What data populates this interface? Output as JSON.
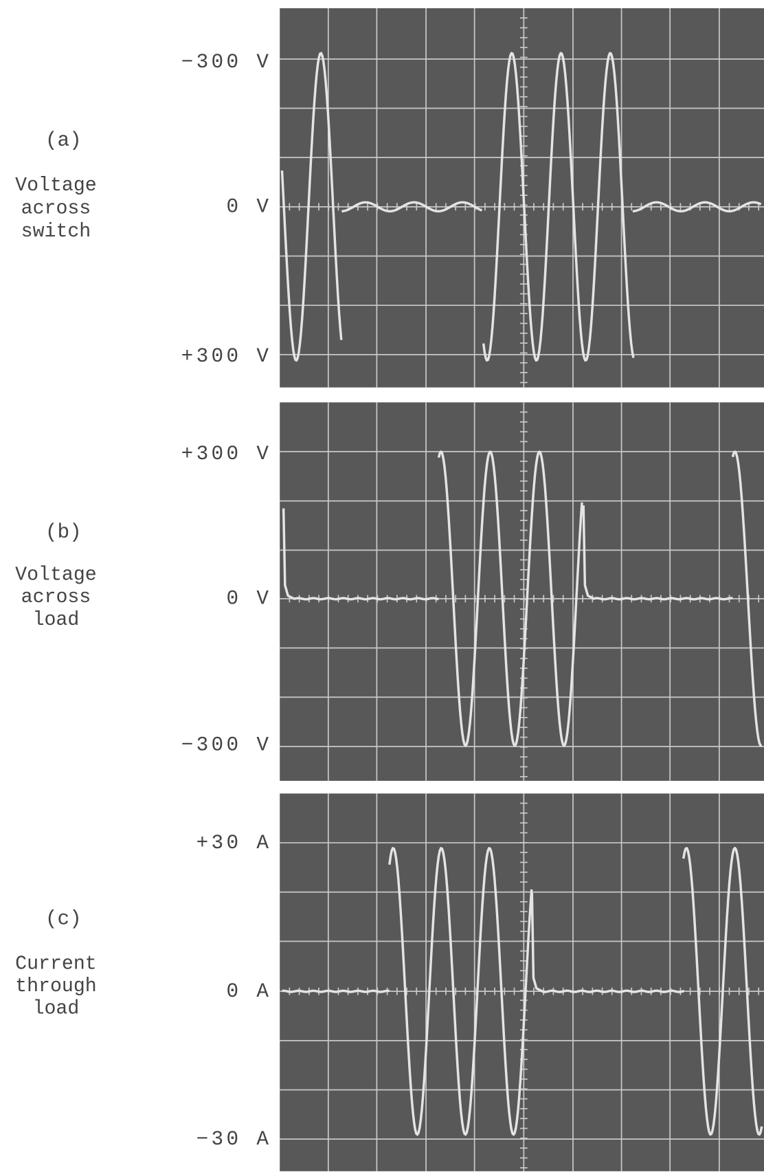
{
  "panels": [
    {
      "label": "(a)",
      "caption": [
        "Voltage",
        "across",
        "switch"
      ],
      "ticks": [
        "−300 V",
        "0 V",
        "+300 V"
      ]
    },
    {
      "label": "(b)",
      "caption": [
        "Voltage",
        "across",
        "load"
      ],
      "ticks": [
        "+300 V",
        "0 V",
        "−300 V"
      ]
    },
    {
      "label": "(c)",
      "caption": [
        "Current",
        "through",
        "load"
      ],
      "ticks": [
        "+30 A",
        "0 A",
        "−30 A"
      ]
    }
  ]
}
